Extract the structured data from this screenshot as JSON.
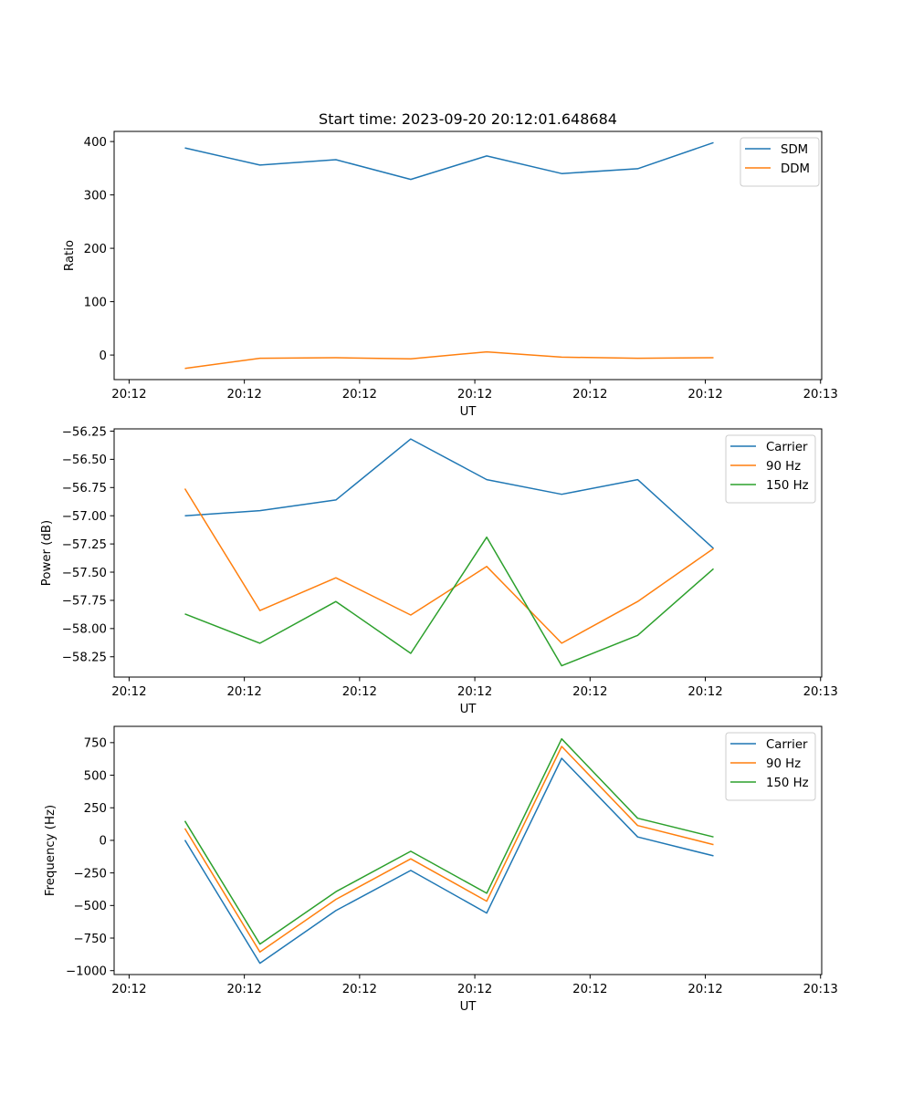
{
  "figure_title": "Start time: 2023-09-20 20:12:01.648684",
  "chart_data": [
    {
      "type": "line",
      "title": "Start time: 2023-09-20 20:12:01.648684",
      "xlabel": "UT",
      "ylabel": "Ratio",
      "x_seconds_after_2012": [
        4.84,
        11.35,
        17.94,
        24.44,
        31.03,
        37.54,
        44.13,
        50.71
      ],
      "x_ticks": [
        0,
        10,
        20,
        30,
        40,
        50,
        60
      ],
      "x_tick_labels": [
        "20:12",
        "20:12",
        "20:12",
        "20:12",
        "20:12",
        "20:12",
        "20:13"
      ],
      "xlim": [
        -1.3,
        60.1
      ],
      "y_ticks": [
        0,
        100,
        200,
        300,
        400
      ],
      "y_tick_labels": [
        "0",
        "100",
        "200",
        "300",
        "400"
      ],
      "ylim": [
        -46,
        419
      ],
      "grid": false,
      "legend_position": "top-right",
      "series": [
        {
          "name": "SDM",
          "color": "#1f77b4",
          "values": [
            388,
            356,
            366,
            329,
            373,
            340,
            349,
            398
          ]
        },
        {
          "name": "DDM",
          "color": "#ff7f0e",
          "values": [
            -25,
            -6,
            -5,
            -7,
            6,
            -4,
            -6,
            -5
          ]
        }
      ]
    },
    {
      "type": "line",
      "title": "",
      "xlabel": "UT",
      "ylabel": "Power (dB)",
      "x_seconds_after_2012": [
        4.84,
        11.35,
        17.94,
        24.44,
        31.03,
        37.54,
        44.13,
        50.71
      ],
      "x_ticks": [
        0,
        10,
        20,
        30,
        40,
        50,
        60
      ],
      "x_tick_labels": [
        "20:12",
        "20:12",
        "20:12",
        "20:12",
        "20:12",
        "20:12",
        "20:13"
      ],
      "xlim": [
        -1.3,
        60.1
      ],
      "y_ticks": [
        -56.25,
        -56.5,
        -56.75,
        -57.0,
        -57.25,
        -57.5,
        -57.75,
        -58.0,
        -58.25
      ],
      "y_tick_labels": [
        "−56.25",
        "−56.50",
        "−56.75",
        "−57.00",
        "−57.25",
        "−57.50",
        "−57.75",
        "−58.00",
        "−58.25"
      ],
      "ylim": [
        -58.43,
        -56.23
      ],
      "grid": false,
      "legend_position": "top-right",
      "series": [
        {
          "name": "Carrier",
          "color": "#1f77b4",
          "values": [
            -57.0,
            -56.955,
            -56.86,
            -56.32,
            -56.68,
            -56.81,
            -56.68,
            -57.29
          ]
        },
        {
          "name": "90 Hz",
          "color": "#ff7f0e",
          "values": [
            -56.76,
            -57.84,
            -57.55,
            -57.88,
            -57.45,
            -58.13,
            -57.76,
            -57.29
          ]
        },
        {
          "name": "150 Hz",
          "color": "#2ca02c",
          "values": [
            -57.87,
            -58.13,
            -57.76,
            -58.22,
            -57.19,
            -58.33,
            -58.06,
            -57.47
          ]
        }
      ]
    },
    {
      "type": "line",
      "title": "",
      "xlabel": "UT",
      "ylabel": "Frequency (Hz)",
      "x_seconds_after_2012": [
        4.84,
        11.35,
        17.94,
        24.44,
        31.03,
        37.54,
        44.13,
        50.71
      ],
      "x_ticks": [
        0,
        10,
        20,
        30,
        40,
        50,
        60
      ],
      "x_tick_labels": [
        "20:12",
        "20:12",
        "20:12",
        "20:12",
        "20:12",
        "20:12",
        "20:13"
      ],
      "xlim": [
        -1.3,
        60.1
      ],
      "y_ticks": [
        750,
        500,
        250,
        0,
        -250,
        -500,
        -750,
        -1000
      ],
      "y_tick_labels": [
        "750",
        "500",
        "250",
        "0",
        "−250",
        "−500",
        "−750",
        "−1000"
      ],
      "ylim": [
        -1030,
        875
      ],
      "grid": false,
      "legend_position": "top-right",
      "series": [
        {
          "name": "Carrier",
          "color": "#1f77b4",
          "values": [
            2,
            -943,
            -539,
            -231,
            -558,
            630,
            26,
            -119
          ]
        },
        {
          "name": "90 Hz",
          "color": "#ff7f0e",
          "values": [
            91,
            -857,
            -453,
            -142,
            -467,
            721,
            114,
            -33
          ]
        },
        {
          "name": "150 Hz",
          "color": "#2ca02c",
          "values": [
            149,
            -796,
            -394,
            -84,
            -406,
            779,
            170,
            26
          ]
        }
      ]
    }
  ]
}
